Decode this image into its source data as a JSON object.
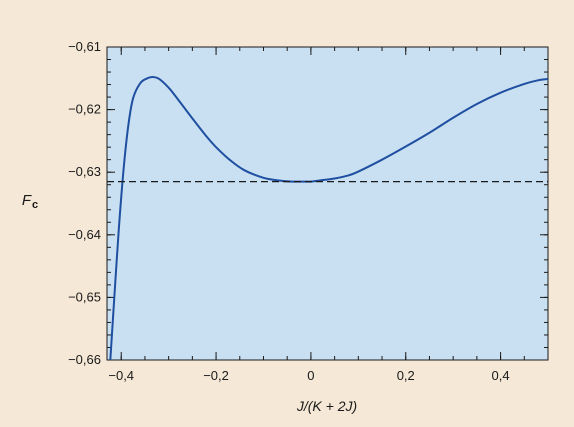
{
  "chart_data": {
    "type": "line",
    "xlabel": "J/(K + 2J)",
    "ylabel_main": "F",
    "ylabel_sub": "c",
    "xlim": [
      -0.43,
      0.5
    ],
    "ylim": [
      -0.66,
      -0.61
    ],
    "x_ticks": [
      -0.4,
      -0.2,
      0,
      0.2,
      0.4
    ],
    "x_tick_labels": [
      "−0,4",
      "−0,2",
      "0",
      "0,2",
      "0,4"
    ],
    "y_ticks": [
      -0.61,
      -0.62,
      -0.63,
      -0.64,
      -0.65,
      -0.66
    ],
    "y_tick_labels": [
      "−0,61",
      "−0,62",
      "−0,63",
      "−0,64",
      "−0,65",
      "−0,66"
    ],
    "grid": false,
    "colors": {
      "background": "#f5e8d6",
      "plot_area": "#c9dff2",
      "curve": "#1f4fa0",
      "reference": "#1a1a1a"
    },
    "series": [
      {
        "style": "solid",
        "x": [
          -0.423,
          -0.415,
          -0.405,
          -0.395,
          -0.385,
          -0.375,
          -0.36,
          -0.345,
          -0.333,
          -0.32,
          -0.3,
          -0.28,
          -0.25,
          -0.22,
          -0.2,
          -0.17,
          -0.14,
          -0.1,
          -0.07,
          -0.04,
          -0.02,
          0.0,
          0.02,
          0.05,
          0.08,
          0.1,
          0.15,
          0.2,
          0.25,
          0.3,
          0.35,
          0.4,
          0.45,
          0.48,
          0.5
        ],
        "y": [
          -0.66,
          -0.6505,
          -0.639,
          -0.6295,
          -0.6225,
          -0.6182,
          -0.6158,
          -0.615,
          -0.6148,
          -0.6151,
          -0.6165,
          -0.6184,
          -0.6214,
          -0.6243,
          -0.626,
          -0.6281,
          -0.6297,
          -0.6309,
          -0.6313,
          -0.6315,
          -0.6315,
          -0.6315,
          -0.6313,
          -0.631,
          -0.6305,
          -0.6299,
          -0.628,
          -0.6259,
          -0.6237,
          -0.6213,
          -0.6191,
          -0.6173,
          -0.6159,
          -0.6153,
          -0.6151
        ]
      },
      {
        "style": "dashed",
        "x": [
          -0.43,
          0.5
        ],
        "y": [
          -0.6315,
          -0.6315
        ]
      }
    ]
  }
}
